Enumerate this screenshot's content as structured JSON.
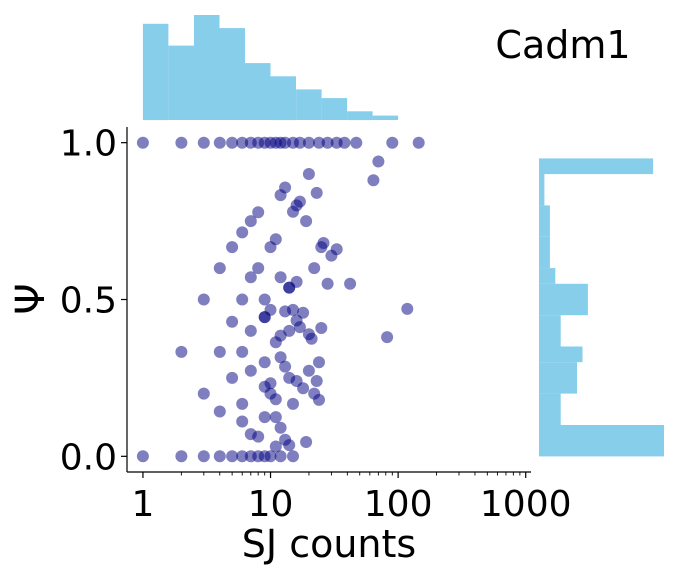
{
  "chart_data": {
    "type": "scatter",
    "title": "Cadm1",
    "xlabel": "SJ counts",
    "ylabel": "Ψ",
    "xscale": "log",
    "xlim": [
      0.75,
      1100
    ],
    "ylim": [
      -0.05,
      1.05
    ],
    "x_ticks": [
      1,
      10,
      100,
      1000
    ],
    "x_tick_labels": [
      "1",
      "10",
      "100",
      "1000"
    ],
    "y_ticks": [
      0.0,
      0.5,
      1.0
    ],
    "y_tick_labels": [
      "0.0",
      "0.5",
      "1.0"
    ],
    "grid": false,
    "legend": "none",
    "colors": {
      "point": "#00007f",
      "histogram": "#87ceeb",
      "axis": "#000000"
    },
    "points": [
      [
        1,
        1.0
      ],
      [
        2,
        1.0
      ],
      [
        3,
        1.0
      ],
      [
        4,
        1.0
      ],
      [
        5,
        1.0
      ],
      [
        6,
        1.0
      ],
      [
        7,
        1.0
      ],
      [
        8,
        1.0
      ],
      [
        9,
        1.0
      ],
      [
        10,
        1.0
      ],
      [
        11,
        1.0
      ],
      [
        12,
        1.0
      ],
      [
        13,
        1.0
      ],
      [
        15,
        1.0
      ],
      [
        17,
        1.0
      ],
      [
        20,
        1.0
      ],
      [
        24,
        1.0
      ],
      [
        28,
        1.0
      ],
      [
        33,
        1.0
      ],
      [
        38,
        1.0
      ],
      [
        47,
        1.0
      ],
      [
        90,
        1.0
      ],
      [
        145,
        1.0
      ],
      [
        1,
        0.0
      ],
      [
        2,
        0.0
      ],
      [
        3,
        0.0
      ],
      [
        4,
        0.0
      ],
      [
        5,
        0.0
      ],
      [
        6,
        0.0
      ],
      [
        7,
        0.0
      ],
      [
        8,
        0.0
      ],
      [
        9,
        0.0
      ],
      [
        10,
        0.0
      ],
      [
        12,
        0.0
      ],
      [
        15,
        0.0
      ],
      [
        2,
        0.333
      ],
      [
        4,
        0.333
      ],
      [
        6,
        0.333
      ],
      [
        3,
        0.5
      ],
      [
        6,
        0.5
      ],
      [
        9,
        0.5
      ],
      [
        3,
        0.2
      ],
      [
        4,
        0.143
      ],
      [
        5,
        0.25
      ],
      [
        6,
        0.167
      ],
      [
        4,
        0.6
      ],
      [
        5,
        0.667
      ],
      [
        6,
        0.714
      ],
      [
        7,
        0.75
      ],
      [
        5,
        0.429
      ],
      [
        7,
        0.571
      ],
      [
        8,
        0.6
      ],
      [
        7,
        0.4
      ],
      [
        10,
        0.467
      ],
      [
        9,
        0.3
      ],
      [
        11,
        0.364
      ],
      [
        12,
        0.385
      ],
      [
        13,
        0.462
      ],
      [
        14,
        0.4
      ],
      [
        13,
        0.286
      ],
      [
        15,
        0.467
      ],
      [
        16,
        0.433
      ],
      [
        17,
        0.412
      ],
      [
        9,
        0.444
      ],
      [
        7,
        0.273
      ],
      [
        6,
        0.111
      ],
      [
        7,
        0.071
      ],
      [
        8,
        0.063
      ],
      [
        9,
        0.222
      ],
      [
        10,
        0.2
      ],
      [
        11,
        0.182
      ],
      [
        8,
        0.778
      ],
      [
        9,
        0.444
      ],
      [
        10,
        0.667
      ],
      [
        11,
        0.692
      ],
      [
        12,
        0.833
      ],
      [
        13,
        0.857
      ],
      [
        14,
        0.538
      ],
      [
        15,
        0.78
      ],
      [
        16,
        0.8
      ],
      [
        17,
        0.812
      ],
      [
        19,
        0.75
      ],
      [
        20,
        0.9
      ],
      [
        22,
        0.6
      ],
      [
        23,
        0.84
      ],
      [
        25,
        0.667
      ],
      [
        26,
        0.68
      ],
      [
        30,
        0.64
      ],
      [
        33,
        0.66
      ],
      [
        28,
        0.55
      ],
      [
        42,
        0.55
      ],
      [
        10,
        0.233
      ],
      [
        12,
        0.316
      ],
      [
        14,
        0.25
      ],
      [
        15,
        0.167
      ],
      [
        16,
        0.24
      ],
      [
        18,
        0.217
      ],
      [
        20,
        0.273
      ],
      [
        22,
        0.2
      ],
      [
        23,
        0.24
      ],
      [
        24,
        0.18
      ],
      [
        25,
        0.409
      ],
      [
        11,
        0.125
      ],
      [
        12,
        0.571
      ],
      [
        14,
        0.538
      ],
      [
        16,
        0.556
      ],
      [
        18,
        0.458
      ],
      [
        20,
        0.389
      ],
      [
        21,
        0.375
      ],
      [
        24,
        0.3
      ],
      [
        64,
        0.88
      ],
      [
        70,
        0.94
      ],
      [
        82,
        0.38
      ],
      [
        118,
        0.47
      ],
      [
        11,
        0.0313
      ],
      [
        12,
        0.0909
      ],
      [
        13,
        0.0526
      ],
      [
        14,
        0.0357
      ],
      [
        19,
        0.0455
      ],
      [
        9,
        0.125
      ]
    ],
    "top_histogram": {
      "bin_edges": [
        0,
        0.2,
        0.4,
        0.6,
        0.8,
        1.0,
        1.2,
        1.4,
        1.6,
        1.8,
        2.0,
        2.2
      ],
      "counts": [
        22,
        17,
        24,
        21,
        13,
        10,
        7,
        5,
        2,
        1,
        0
      ]
    },
    "right_histogram": {
      "bin_edges": [
        0,
        0.1,
        0.2,
        0.3,
        0.35,
        0.45,
        0.55,
        0.6,
        0.7,
        0.8,
        0.9,
        0.95,
        1.0
      ],
      "counts": [
        23,
        4,
        7,
        8,
        4,
        9,
        3,
        2,
        2,
        1,
        21,
        0
      ]
    }
  }
}
